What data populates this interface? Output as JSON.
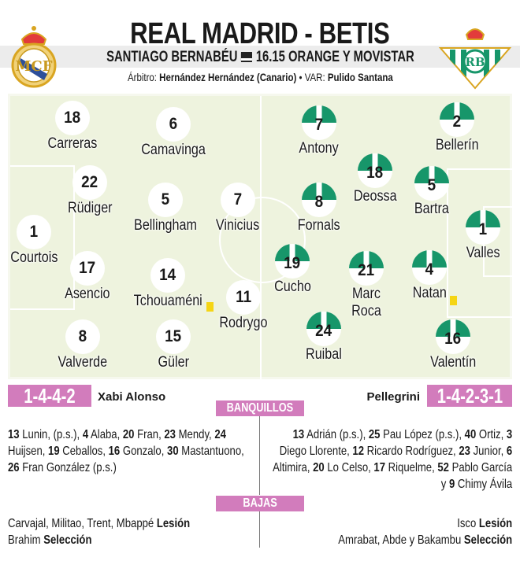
{
  "header": {
    "title": "REAL MADRID - BETIS",
    "venue": "SANTIAGO BERNABÉU",
    "tv_icon": "tv-icon",
    "broadcast": "16.15 ORANGE Y MOVISTAR",
    "referee_label": "Árbitro:",
    "referee": "Hernández Hernández (Canario)",
    "sep": "•",
    "var_label": "VAR:",
    "var": "Pulido Santana"
  },
  "home": {
    "name": "Real Madrid",
    "crest": "real-madrid-crest",
    "formation": "1-4-4-2",
    "coach": "Xabi Alonso",
    "players": [
      {
        "num": "18",
        "name": "Carreras"
      },
      {
        "num": "6",
        "name": "Camavinga"
      },
      {
        "num": "22",
        "name": "Rüdiger"
      },
      {
        "num": "5",
        "name": "Bellingham"
      },
      {
        "num": "7",
        "name": "Vinicius"
      },
      {
        "num": "1",
        "name": "Courtois"
      },
      {
        "num": "17",
        "name": "Asencio"
      },
      {
        "num": "14",
        "name": "Tchouaméni",
        "card": "yellow"
      },
      {
        "num": "11",
        "name": "Rodrygo"
      },
      {
        "num": "8",
        "name": "Valverde"
      },
      {
        "num": "15",
        "name": "Güler"
      }
    ],
    "bench": [
      {
        "b": "13",
        "t": " Lunin, (p.s.), "
      },
      {
        "b": "4",
        "t": " Alaba, "
      },
      {
        "b": "20",
        "t": " Fran, "
      },
      {
        "b": "23",
        "t": " Mendy, "
      },
      {
        "b": "24",
        "t": " Huijsen, "
      },
      {
        "b": "19",
        "t": " Ceballos, "
      },
      {
        "b": "16",
        "t": " Gonzalo, "
      },
      {
        "b": "30",
        "t": " Mastantuono, "
      },
      {
        "b": "26",
        "t": " Fran González (p.s.)"
      }
    ],
    "absences": [
      {
        "t": "Carvajal, Militao, Trent, Mbappé ",
        "b": "Lesión"
      },
      {
        "t": "Brahim ",
        "b": "Selección"
      }
    ]
  },
  "away": {
    "name": "Betis",
    "crest": "betis-crest",
    "formation": "1-4-2-3-1",
    "coach": "Pellegrini",
    "players": [
      {
        "num": "7",
        "name": "Antony"
      },
      {
        "num": "2",
        "name": "Bellerín"
      },
      {
        "num": "18",
        "name": "Deossa"
      },
      {
        "num": "8",
        "name": "Fornals"
      },
      {
        "num": "5",
        "name": "Bartra"
      },
      {
        "num": "1",
        "name": "Valles"
      },
      {
        "num": "19",
        "name": "Cucho"
      },
      {
        "num": "21",
        "name": "Marc Roca"
      },
      {
        "num": "4",
        "name": "Natan",
        "card": "yellow"
      },
      {
        "num": "24",
        "name": "Ruibal"
      },
      {
        "num": "16",
        "name": "Valentín"
      }
    ],
    "bench": [
      {
        "b": "13",
        "t": " Adrián (p.s.), "
      },
      {
        "b": "25",
        "t": " Pau López (p.s.), "
      },
      {
        "b": "40",
        "t": " Ortiz, "
      },
      {
        "b": "3",
        "t": " Diego Llorente, "
      },
      {
        "b": "12",
        "t": " Ricardo Rodríguez, "
      },
      {
        "b": "23",
        "t": " Junior, "
      },
      {
        "b": "6",
        "t": " Altimira, "
      },
      {
        "b": "20",
        "t": " Lo Celso, "
      },
      {
        "b": "17",
        "t": " Riquelme, "
      },
      {
        "b": "52",
        "t": " Pablo García y "
      },
      {
        "b": "9",
        "t": " Chimy Ávila"
      }
    ],
    "absences": [
      {
        "t": "Isco ",
        "b": "Lesión"
      },
      {
        "t": "Amrabat, Abde y Bakambu ",
        "b": "Selección"
      }
    ]
  },
  "sections": {
    "bench": "BANQUILLOS",
    "absences": "BAJAS"
  },
  "colors": {
    "accent": "#d27cbc",
    "betis_green": "#17966a",
    "field": "#eef3de",
    "yellow_card": "#f5d515"
  }
}
